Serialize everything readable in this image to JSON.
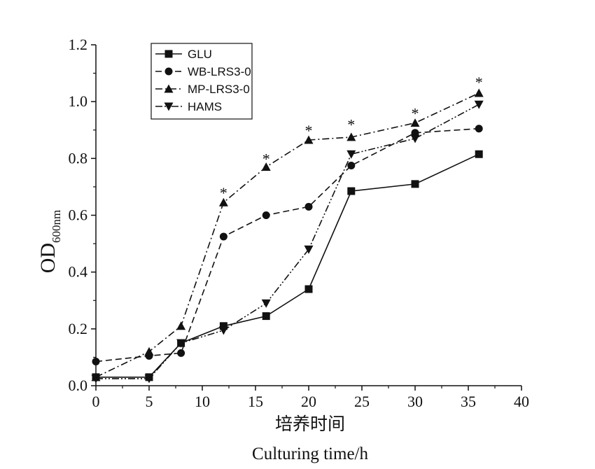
{
  "chart_data": {
    "type": "line",
    "xlabel_cn": "培养时间",
    "xlabel_en": "Culturing time/h",
    "ylabel_main": "OD",
    "ylabel_sub": "600nm",
    "xlim": [
      0,
      40
    ],
    "ylim": [
      0,
      1.2
    ],
    "xticks": [
      "0",
      "5",
      "10",
      "15",
      "20",
      "25",
      "30",
      "35",
      "40"
    ],
    "yticks": [
      "0.0",
      "0.2",
      "0.4",
      "0.6",
      "0.8",
      "1.0",
      "1.2"
    ],
    "grid": false,
    "legend_position": "top-left",
    "significance_mark": "*",
    "significance_x": [
      12,
      16,
      20,
      24,
      30,
      36
    ],
    "significance_y": [
      0.68,
      0.8,
      0.9,
      0.92,
      0.96,
      1.07
    ],
    "series": [
      {
        "name": "GLU",
        "marker": "square",
        "dash": "solid",
        "x": [
          0,
          5,
          8,
          12,
          16,
          20,
          24,
          30,
          36
        ],
        "y": [
          0.03,
          0.03,
          0.15,
          0.21,
          0.245,
          0.34,
          0.685,
          0.71,
          0.815
        ]
      },
      {
        "name": "WB-LRS3-0",
        "marker": "circle",
        "dash": "dashed",
        "x": [
          0,
          5,
          8,
          12,
          16,
          20,
          24,
          30,
          36
        ],
        "y": [
          0.085,
          0.105,
          0.115,
          0.525,
          0.6,
          0.63,
          0.775,
          0.89,
          0.905
        ]
      },
      {
        "name": "MP-LRS3-0",
        "marker": "triangle-up",
        "dash": "dashdot",
        "x": [
          0,
          5,
          8,
          12,
          16,
          20,
          24,
          30,
          36
        ],
        "y": [
          0.03,
          0.12,
          0.21,
          0.645,
          0.77,
          0.865,
          0.875,
          0.925,
          1.03
        ]
      },
      {
        "name": "HAMS",
        "marker": "triangle-down",
        "dash": "dashdotdot",
        "x": [
          0,
          5,
          8,
          12,
          16,
          20,
          24,
          30,
          36
        ],
        "y": [
          0.025,
          0.025,
          0.15,
          0.195,
          0.29,
          0.48,
          0.815,
          0.87,
          0.99
        ]
      }
    ]
  }
}
